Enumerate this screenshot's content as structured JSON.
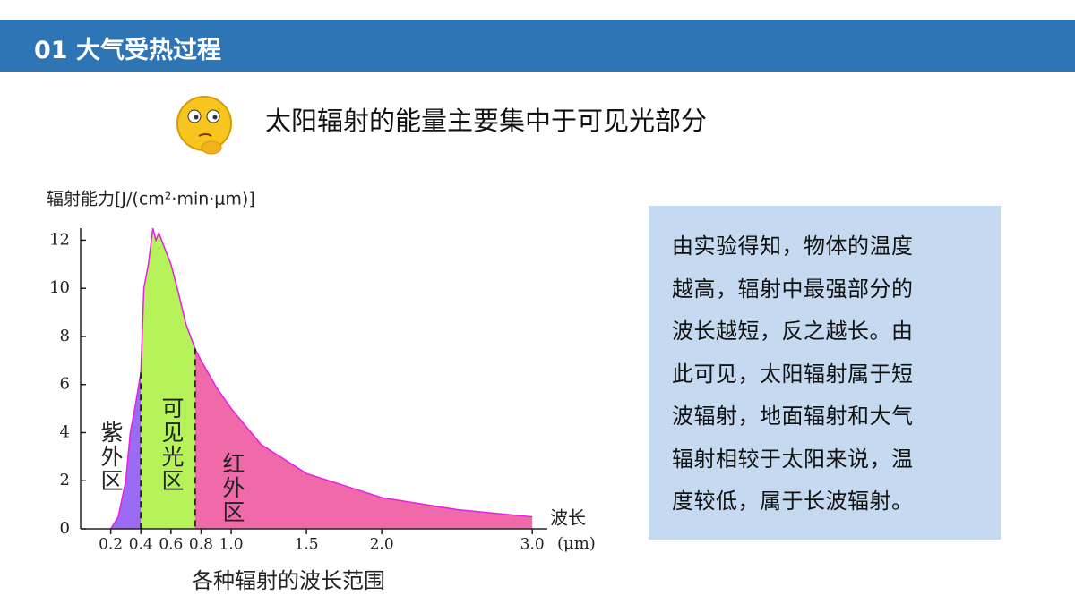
{
  "header": {
    "title": "01 大气受热过程"
  },
  "subtitle": "太阳辐射的能量主要集中于可见光部分",
  "note": {
    "lines": [
      "由实验得知，物体的温度",
      "越高，辐射中最强部分的",
      "波长越短，反之越长。由",
      "此可见，太阳辐射属于短",
      "波辐射，地面辐射和大气",
      "辐射相较于太阳来说，温",
      "度较低，属于长波辐射。"
    ]
  },
  "chart_data": {
    "type": "area",
    "title": "各种辐射的波长范围",
    "ylabel": "辐射能力[J/(cm²·min·μm)]",
    "xlabel": "波长",
    "xunit": "(μm)",
    "xlim": [
      0,
      3.1
    ],
    "ylim": [
      0,
      12.5
    ],
    "xticks": [
      0.2,
      0.4,
      0.6,
      0.8,
      {
        "value": 1,
        "label": "1.0"
      },
      1.5,
      {
        "value": 2,
        "label": "2.0"
      },
      {
        "value": 3,
        "label": "3.0"
      }
    ],
    "yticks": [
      0,
      2,
      4,
      6,
      8,
      10,
      12
    ],
    "outline_color": "#e61ee6",
    "series": [
      {
        "name": "紫外区",
        "color": "#9b6cf2",
        "x": [
          0.2,
          0.25,
          0.3,
          0.33,
          0.36,
          0.4
        ],
        "values": [
          0,
          0.5,
          2,
          4,
          5,
          6.5
        ]
      },
      {
        "name": "可见光区",
        "color": "#b6f25a",
        "x": [
          0.4,
          0.42,
          0.45,
          0.48,
          0.5,
          0.52,
          0.55,
          0.6,
          0.65,
          0.7,
          0.76
        ],
        "values": [
          6.5,
          10,
          11,
          12.5,
          12,
          12.3,
          11.8,
          11,
          9.8,
          8.5,
          7.5
        ]
      },
      {
        "name": "红外区",
        "color": "#f06aaa",
        "x": [
          0.76,
          0.8,
          0.9,
          1,
          1.2,
          1.5,
          2,
          2.5,
          3
        ],
        "values": [
          7.5,
          7,
          5.9,
          5,
          3.5,
          2.3,
          1.3,
          0.8,
          0.5
        ]
      }
    ]
  }
}
